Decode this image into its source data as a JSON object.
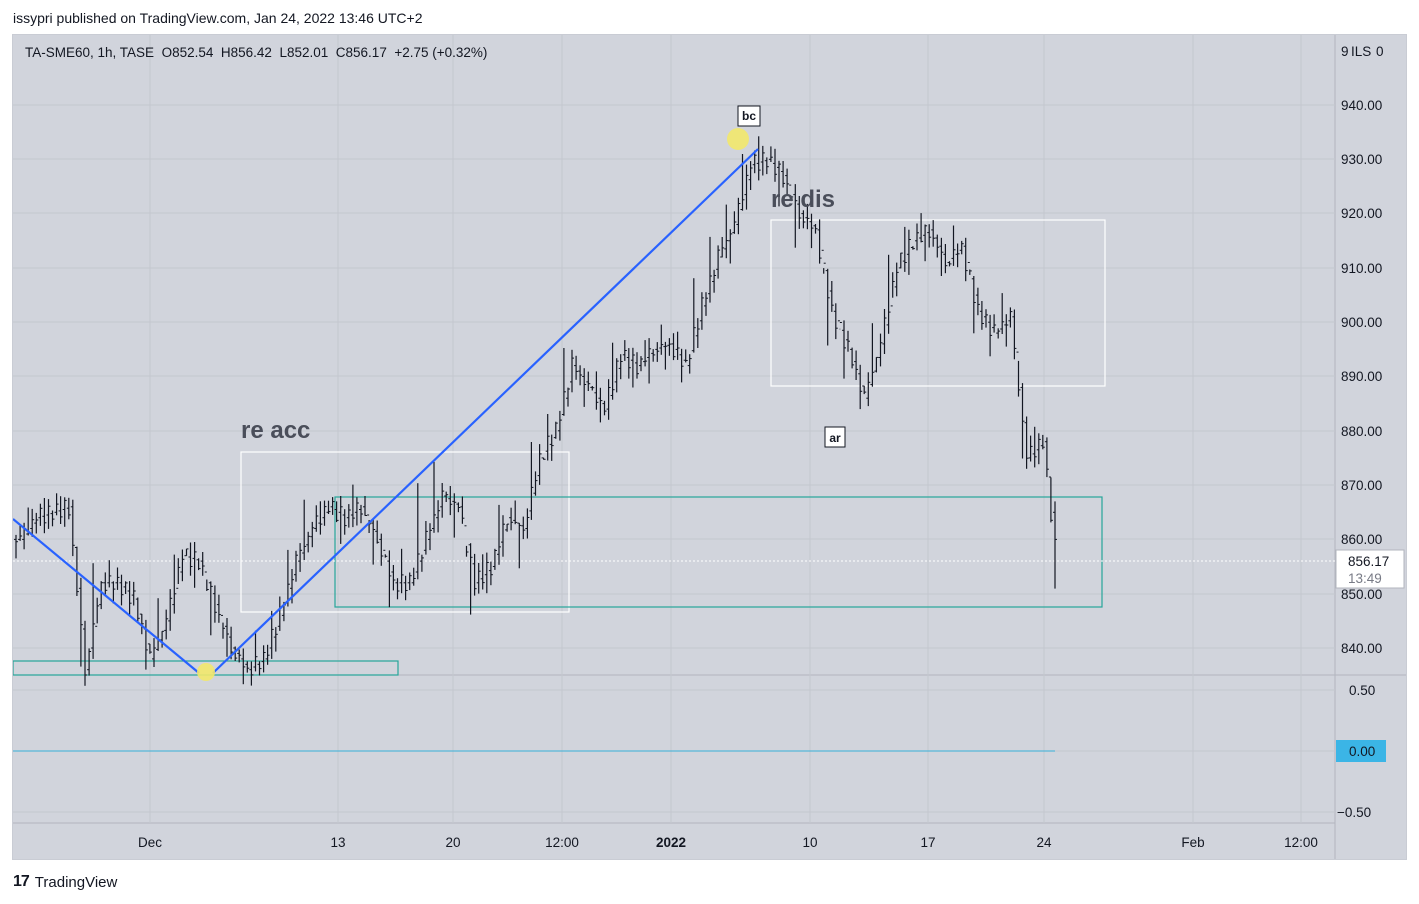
{
  "header": {
    "published": "issypri published on TradingView.com, Jan 24, 2022 13:46 UTC+2"
  },
  "legend": {
    "symbol": "TA-SME60, 1h, TASE",
    "open": "O852.54",
    "high": "H856.42",
    "low": "L852.01",
    "close": "C856.17",
    "change": "+2.75 (+0.32%)"
  },
  "footer": {
    "brand": "TradingView",
    "logo": "17"
  },
  "colors": {
    "pane_bg": "#d1d4dc",
    "trendline": "#2962ff",
    "box_white": "#ffffff",
    "box_green": "#26a69a",
    "highlight_yellow": "#f2e86b",
    "candle": "#131722",
    "zero_line": "#56b6d8",
    "zero_badge": "#3bb5e6"
  },
  "chart_data": {
    "type": "bar",
    "symbol": "TA-SME60",
    "interval": "1h",
    "currency": "ILS",
    "price_axis": {
      "ticks": [
        "940.00",
        "930.00",
        "920.00",
        "910.00",
        "900.00",
        "890.00",
        "880.00",
        "870.00",
        "860.00",
        "850.00",
        "840.00"
      ],
      "range": [
        835,
        948
      ],
      "unit_label": "ILS",
      "top_label": "9",
      "top_value": "0"
    },
    "last_price": {
      "value": "856.17",
      "countdown": "13:49"
    },
    "indicator_axis": {
      "ticks": [
        "0.50",
        "0.00",
        "−0.50"
      ],
      "current": "0.00"
    },
    "time_axis": {
      "ticks": [
        "Dec",
        "13",
        "20",
        "12:00",
        "2022",
        "10",
        "17",
        "24",
        "Feb",
        "12:00"
      ]
    },
    "ohlc_path": [
      [
        0,
        860,
        858,
        864
      ],
      [
        1,
        864,
        862,
        866
      ],
      [
        2,
        865,
        862,
        866
      ],
      [
        3,
        866,
        864,
        867
      ],
      [
        4,
        836,
        836,
        858
      ],
      [
        5,
        852,
        846,
        856
      ],
      [
        6,
        852,
        850,
        855
      ],
      [
        7,
        849,
        846,
        852
      ],
      [
        8,
        838,
        837,
        844
      ],
      [
        9,
        845,
        842,
        849
      ],
      [
        10,
        857,
        852,
        859
      ],
      [
        11,
        856,
        852,
        858
      ],
      [
        12,
        848,
        842,
        850
      ],
      [
        13,
        840,
        838,
        844
      ],
      [
        14,
        836,
        835,
        838
      ],
      [
        15,
        838,
        836,
        842
      ],
      [
        16,
        846,
        840,
        847
      ],
      [
        17,
        856,
        850,
        858
      ],
      [
        18,
        862,
        858,
        867
      ],
      [
        19,
        866,
        864,
        867
      ],
      [
        20,
        864,
        860,
        866
      ],
      [
        21,
        866,
        862,
        869
      ],
      [
        22,
        860,
        856,
        862
      ],
      [
        23,
        852,
        848,
        856
      ],
      [
        24,
        852,
        849,
        857
      ],
      [
        25,
        860,
        856,
        872
      ],
      [
        26,
        868,
        862,
        876
      ],
      [
        27,
        866,
        860,
        868
      ],
      [
        28,
        852,
        846,
        856
      ],
      [
        29,
        855,
        850,
        858
      ],
      [
        30,
        864,
        858,
        866
      ],
      [
        31,
        862,
        855,
        866
      ],
      [
        32,
        875,
        868,
        880
      ],
      [
        33,
        880,
        876,
        882
      ],
      [
        34,
        892,
        886,
        895
      ],
      [
        35,
        888,
        884,
        892
      ],
      [
        36,
        884,
        883,
        890
      ],
      [
        37,
        894,
        888,
        896
      ],
      [
        38,
        892,
        888,
        895
      ],
      [
        39,
        895,
        890,
        896
      ],
      [
        40,
        896,
        891,
        898
      ],
      [
        41,
        892,
        890,
        898
      ],
      [
        42,
        903,
        897,
        909
      ],
      [
        43,
        912,
        905,
        915
      ],
      [
        44,
        918,
        912,
        922
      ],
      [
        45,
        929,
        922,
        932
      ],
      [
        46,
        930,
        927,
        933
      ],
      [
        47,
        927,
        922,
        931
      ],
      [
        48,
        920,
        913,
        922
      ],
      [
        49,
        917,
        914,
        920
      ],
      [
        50,
        902,
        896,
        906
      ],
      [
        51,
        895,
        889,
        898
      ],
      [
        52,
        886,
        885,
        893
      ],
      [
        53,
        896,
        893,
        900
      ],
      [
        54,
        910,
        905,
        915
      ],
      [
        55,
        915,
        910,
        917
      ],
      [
        56,
        917,
        912,
        919
      ],
      [
        57,
        911,
        908,
        916
      ],
      [
        58,
        914,
        912,
        917
      ],
      [
        59,
        902,
        898,
        907
      ],
      [
        60,
        898,
        894,
        902
      ],
      [
        61,
        901,
        897,
        905
      ],
      [
        62,
        875,
        874,
        890
      ],
      [
        63,
        878,
        875,
        881
      ],
      [
        64,
        852,
        851,
        870
      ]
    ],
    "annotations": [
      {
        "text": "re acc",
        "kind": "note"
      },
      {
        "text": "re dis",
        "kind": "note"
      },
      {
        "text": "bc",
        "kind": "tag"
      },
      {
        "text": "ar",
        "kind": "tag"
      }
    ]
  }
}
